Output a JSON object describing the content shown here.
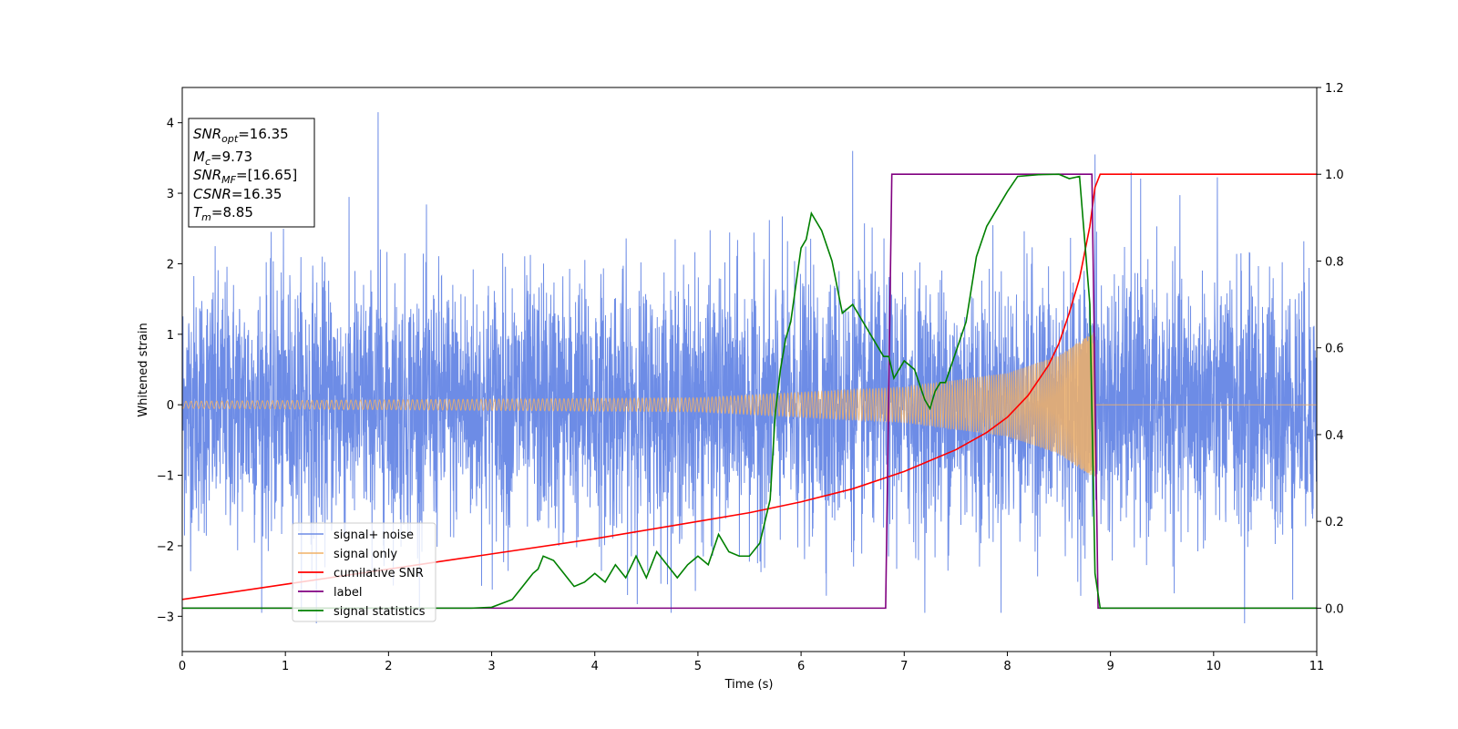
{
  "chart_data": {
    "type": "line",
    "xlabel": "Time (s)",
    "ylabel": "Whitened strain",
    "xlim": [
      0,
      11
    ],
    "ylim": [
      -3.5,
      4.5
    ],
    "y2lim": [
      -0.1,
      1.2
    ],
    "x_ticks": [
      0,
      1,
      2,
      3,
      4,
      5,
      6,
      7,
      8,
      9,
      10,
      11
    ],
    "y_ticks": [
      -3,
      -2,
      -1,
      0,
      1,
      2,
      3,
      4
    ],
    "y2_ticks": [
      0.0,
      0.2,
      0.4,
      0.6,
      0.8,
      1.0,
      1.2
    ],
    "grid": false,
    "legend_position": "lower-left",
    "colors": {
      "signal_noise": "#6d8ce6",
      "signal_only": "#f0b067",
      "cumulative_snr": "#ff0000",
      "label": "#800080",
      "signal_statistics": "#008000"
    },
    "series": [
      {
        "name": "signal+ noise",
        "axis": "left",
        "kind": "noise",
        "approx_std": 0.9,
        "peak_values": [
          {
            "x": 1.9,
            "y": 4.15
          },
          {
            "x": 6.5,
            "y": 3.6
          },
          {
            "x": 8.85,
            "y": 3.55
          },
          {
            "x": 9.2,
            "y": 3.3
          },
          {
            "x": 1.3,
            "y": -3.1
          },
          {
            "x": 10.3,
            "y": -3.1
          }
        ]
      },
      {
        "name": "signal only",
        "axis": "left",
        "kind": "chirp",
        "amplitude_envelope": [
          [
            0,
            0.05
          ],
          [
            5,
            0.1
          ],
          [
            7,
            0.25
          ],
          [
            8,
            0.45
          ],
          [
            8.5,
            0.7
          ],
          [
            8.8,
            1.0
          ],
          [
            8.85,
            1.05
          ]
        ],
        "merger_time": 8.85
      },
      {
        "name": "cumilative SNR",
        "axis": "right",
        "x": [
          0,
          1,
          2,
          3,
          4,
          5,
          5.5,
          6,
          6.5,
          7,
          7.5,
          7.8,
          8.0,
          8.2,
          8.4,
          8.5,
          8.6,
          8.7,
          8.8,
          8.85,
          8.9,
          11
        ],
        "y": [
          0.02,
          0.055,
          0.09,
          0.125,
          0.16,
          0.2,
          0.22,
          0.245,
          0.275,
          0.315,
          0.365,
          0.405,
          0.44,
          0.49,
          0.56,
          0.61,
          0.68,
          0.76,
          0.88,
          0.97,
          1.0,
          1.0
        ]
      },
      {
        "name": "label",
        "axis": "right",
        "x": [
          0,
          6.82,
          6.88,
          8.82,
          8.88,
          11
        ],
        "y": [
          0,
          0,
          1,
          1,
          0,
          0
        ]
      },
      {
        "name": "signal statistics",
        "axis": "right",
        "x": [
          0,
          1,
          2,
          2.8,
          3.0,
          3.2,
          3.3,
          3.4,
          3.45,
          3.5,
          3.6,
          3.7,
          3.8,
          3.9,
          4.0,
          4.1,
          4.2,
          4.3,
          4.4,
          4.5,
          4.6,
          4.7,
          4.8,
          4.9,
          5.0,
          5.1,
          5.2,
          5.3,
          5.4,
          5.5,
          5.6,
          5.7,
          5.75,
          5.8,
          5.85,
          5.9,
          6.0,
          6.05,
          6.1,
          6.15,
          6.2,
          6.3,
          6.4,
          6.5,
          6.6,
          6.7,
          6.8,
          6.85,
          6.9,
          7.0,
          7.1,
          7.2,
          7.25,
          7.3,
          7.35,
          7.4,
          7.5,
          7.6,
          7.7,
          7.8,
          7.9,
          8.0,
          8.1,
          8.3,
          8.5,
          8.6,
          8.7,
          8.8,
          8.85,
          8.9,
          9.0,
          11
        ],
        "y": [
          0.0,
          0.0,
          0.0,
          0.0,
          0.002,
          0.02,
          0.05,
          0.08,
          0.09,
          0.12,
          0.11,
          0.08,
          0.05,
          0.06,
          0.08,
          0.06,
          0.1,
          0.07,
          0.12,
          0.07,
          0.13,
          0.1,
          0.07,
          0.1,
          0.12,
          0.1,
          0.17,
          0.13,
          0.12,
          0.12,
          0.15,
          0.25,
          0.45,
          0.55,
          0.62,
          0.66,
          0.83,
          0.85,
          0.91,
          0.89,
          0.87,
          0.8,
          0.68,
          0.7,
          0.66,
          0.62,
          0.58,
          0.58,
          0.53,
          0.57,
          0.55,
          0.48,
          0.46,
          0.5,
          0.52,
          0.52,
          0.59,
          0.66,
          0.81,
          0.88,
          0.92,
          0.96,
          0.995,
          0.999,
          1.0,
          0.99,
          0.995,
          0.7,
          0.08,
          0.0,
          0.0,
          0.0
        ]
      }
    ],
    "annotations": [
      {
        "prefix": "SNR",
        "sub": "opt",
        "text": "=16.35"
      },
      {
        "prefix": "M",
        "sub": "c",
        "text": "=9.73"
      },
      {
        "prefix": "SNR",
        "sub": "MF",
        "text": "=[16.65]"
      },
      {
        "prefix": "CSNR",
        "sub": "",
        "text": "=16.35"
      },
      {
        "prefix": "T",
        "sub": "m",
        "text": "=8.85"
      }
    ]
  }
}
